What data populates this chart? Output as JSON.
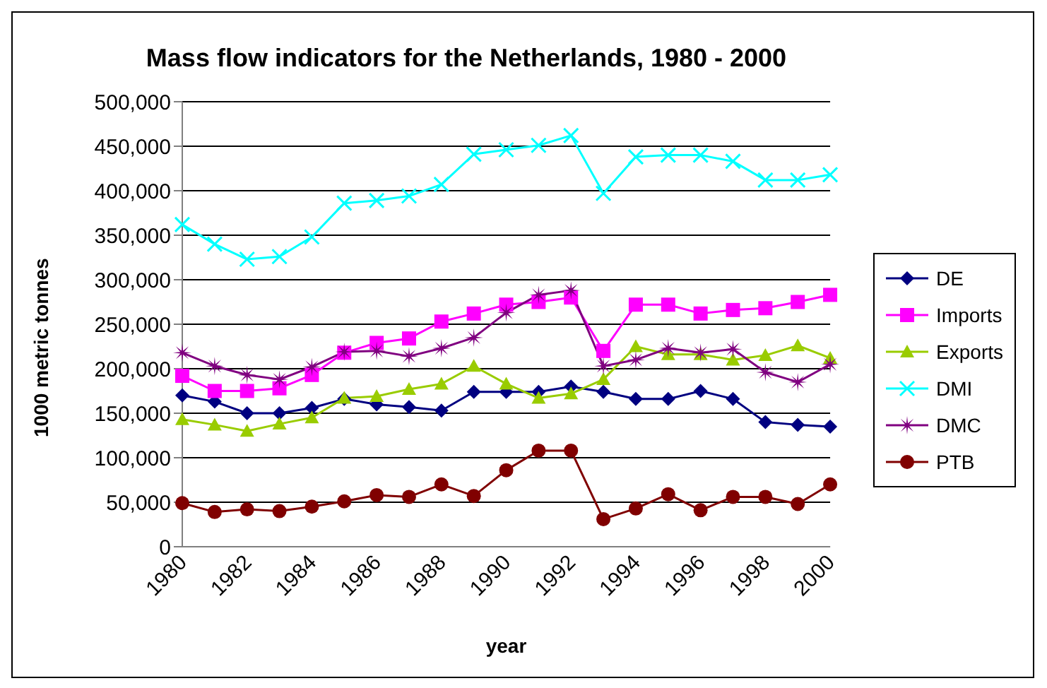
{
  "chart_data": {
    "type": "line",
    "title": "Mass flow indicators for the Netherlands, 1980 - 2000",
    "xlabel": "year",
    "ylabel": "1000 metric tonnes",
    "categories": [
      "1980",
      null,
      "1982",
      null,
      "1984",
      null,
      "1986",
      null,
      "1988",
      null,
      "1990",
      null,
      "1992",
      null,
      "1994",
      null,
      "1996",
      null,
      "1998",
      null,
      "2000"
    ],
    "series": [
      {
        "name": "DE",
        "color": "#000080",
        "marker": "diamond",
        "values": [
          170000,
          163000,
          150000,
          150000,
          156000,
          166000,
          160000,
          157000,
          153000,
          174000,
          174000,
          174000,
          180000,
          174000,
          166000,
          166000,
          175000,
          166000,
          140000,
          137000,
          135000
        ]
      },
      {
        "name": "Imports",
        "color": "#ff00ff",
        "marker": "square",
        "values": [
          192000,
          175000,
          175000,
          178000,
          193000,
          218000,
          229000,
          234000,
          253000,
          262000,
          272000,
          275000,
          280000,
          220000,
          272000,
          272000,
          262000,
          266000,
          268000,
          275000,
          283000
        ]
      },
      {
        "name": "Exports",
        "color": "#99cc00",
        "marker": "triangle",
        "values": [
          143000,
          137000,
          130000,
          138000,
          145000,
          167000,
          169000,
          177000,
          183000,
          203000,
          183000,
          167000,
          172000,
          188000,
          225000,
          216000,
          216000,
          210000,
          215000,
          226000,
          212000
        ]
      },
      {
        "name": "DMI",
        "color": "#00ffff",
        "marker": "cross",
        "values": [
          362000,
          340000,
          323000,
          326000,
          348000,
          386000,
          389000,
          394000,
          407000,
          441000,
          446000,
          451000,
          462000,
          397000,
          438000,
          440000,
          440000,
          433000,
          412000,
          412000,
          418000
        ]
      },
      {
        "name": "DMC",
        "color": "#800080",
        "marker": "star",
        "values": [
          218000,
          203000,
          193000,
          188000,
          202000,
          219000,
          220000,
          214000,
          223000,
          235000,
          263000,
          283000,
          288000,
          203000,
          210000,
          223000,
          218000,
          222000,
          196000,
          185000,
          205000
        ]
      },
      {
        "name": "PTB",
        "color": "#800000",
        "marker": "circle",
        "values": [
          49000,
          39000,
          42000,
          40000,
          45000,
          51000,
          58000,
          56000,
          70000,
          57000,
          86000,
          108000,
          108000,
          31000,
          43000,
          59000,
          41000,
          56000,
          56000,
          48000,
          70000
        ]
      }
    ],
    "ylim": [
      0,
      500000
    ],
    "yticks": [
      0,
      {
        "value": 50000,
        "label": "50,000"
      },
      {
        "value": 100000,
        "label": "100,000"
      },
      {
        "value": 150000,
        "label": "150,000"
      },
      {
        "value": 200000,
        "label": "200,000"
      },
      {
        "value": 250000,
        "label": "250,000"
      },
      {
        "value": 300000,
        "label": "300,000"
      },
      {
        "value": 350000,
        "label": "350,000"
      },
      {
        "value": 400000,
        "label": "400,000"
      },
      {
        "value": 450000,
        "label": "450,000"
      },
      {
        "value": 500000,
        "label": "500,000"
      }
    ],
    "grid": "y",
    "legend": "right"
  }
}
